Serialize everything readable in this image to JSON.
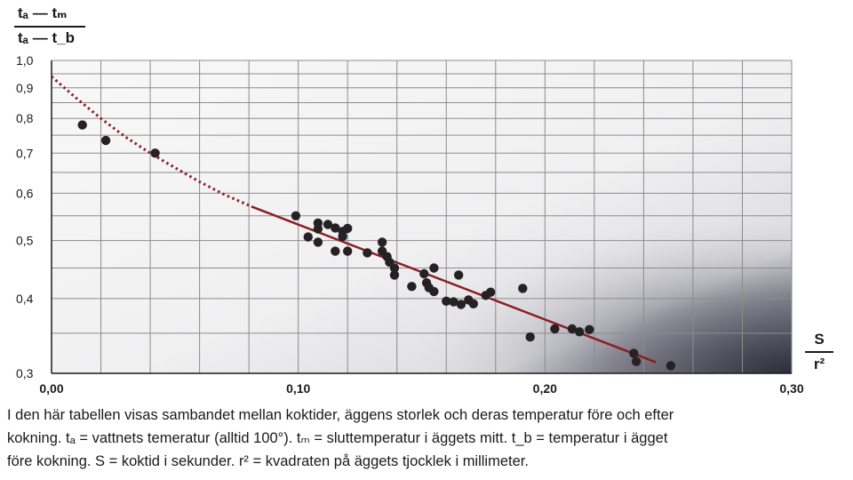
{
  "y_label": {
    "numerator": "tₐ — tₘ",
    "denominator": "tₐ — t_b"
  },
  "x_label": {
    "numerator": "S",
    "denominator": "r²"
  },
  "caption": {
    "line1": "I den här tabellen visas sambandet mellan koktider, äggens storlek och deras temperatur före och efter",
    "line2": "kokning. tₐ = vattnets temeratur (alltid 100°). tₘ = sluttemperatur i äggets mitt. t_b = temperatur i ägget",
    "line3": "före kokning. S = koktid i sekunder. r² = kvadraten på äggets tjocklek i millimeter."
  },
  "chart_data": {
    "type": "scatter",
    "title": "",
    "xlabel": "S / r²",
    "ylabel": "(tₐ − tₘ) / (tₐ − t_b)",
    "x_scale": "linear",
    "y_scale": "log",
    "xlim": [
      0.0,
      0.3
    ],
    "ylim": [
      0.3,
      1.0
    ],
    "x_ticks": [
      "0,00",
      "0,10",
      "0,20",
      "0,30"
    ],
    "y_ticks": [
      {
        "value": 1.0,
        "label": "1,0"
      },
      {
        "value": 0.9,
        "label": "0,9"
      },
      {
        "value": 0.8,
        "label": "0,8"
      },
      {
        "value": 0.7,
        "label": "0,7"
      },
      {
        "value": 0.6,
        "label": "0,6"
      },
      {
        "value": 0.5,
        "label": "0,5"
      },
      {
        "value": 0.4,
        "label": "0,4"
      },
      {
        "value": 0.3,
        "label": "0,3"
      }
    ],
    "grid": true,
    "points": [
      [
        0.0125,
        0.78
      ],
      [
        0.022,
        0.735
      ],
      [
        0.042,
        0.7
      ],
      [
        0.099,
        0.55
      ],
      [
        0.104,
        0.507
      ],
      [
        0.108,
        0.535
      ],
      [
        0.108,
        0.523
      ],
      [
        0.108,
        0.497
      ],
      [
        0.112,
        0.532
      ],
      [
        0.115,
        0.525
      ],
      [
        0.115,
        0.48
      ],
      [
        0.118,
        0.518
      ],
      [
        0.118,
        0.508
      ],
      [
        0.12,
        0.524
      ],
      [
        0.12,
        0.48
      ],
      [
        0.128,
        0.477
      ],
      [
        0.134,
        0.497
      ],
      [
        0.134,
        0.48
      ],
      [
        0.136,
        0.47
      ],
      [
        0.137,
        0.46
      ],
      [
        0.139,
        0.45
      ],
      [
        0.139,
        0.438
      ],
      [
        0.146,
        0.419
      ],
      [
        0.151,
        0.44
      ],
      [
        0.152,
        0.425
      ],
      [
        0.153,
        0.417
      ],
      [
        0.155,
        0.45
      ],
      [
        0.155,
        0.411
      ],
      [
        0.16,
        0.396
      ],
      [
        0.163,
        0.395
      ],
      [
        0.165,
        0.438
      ],
      [
        0.166,
        0.391
      ],
      [
        0.169,
        0.398
      ],
      [
        0.171,
        0.392
      ],
      [
        0.176,
        0.405
      ],
      [
        0.178,
        0.41
      ],
      [
        0.191,
        0.416
      ],
      [
        0.194,
        0.345
      ],
      [
        0.204,
        0.356
      ],
      [
        0.211,
        0.356
      ],
      [
        0.214,
        0.352
      ],
      [
        0.218,
        0.355
      ],
      [
        0.236,
        0.324
      ],
      [
        0.237,
        0.314
      ],
      [
        0.251,
        0.309
      ]
    ],
    "fit_solid": [
      [
        0.081,
        0.57
      ],
      [
        0.245,
        0.313
      ]
    ],
    "fit_dotted": [
      [
        0.0,
        0.94
      ],
      [
        0.01,
        0.865
      ],
      [
        0.02,
        0.8
      ],
      [
        0.03,
        0.745
      ],
      [
        0.04,
        0.7
      ],
      [
        0.05,
        0.662
      ],
      [
        0.06,
        0.627
      ],
      [
        0.07,
        0.597
      ],
      [
        0.081,
        0.57
      ]
    ],
    "colors": {
      "points": "#262124",
      "fit": "#8b1e22",
      "grid": "#8c8c8c"
    }
  }
}
